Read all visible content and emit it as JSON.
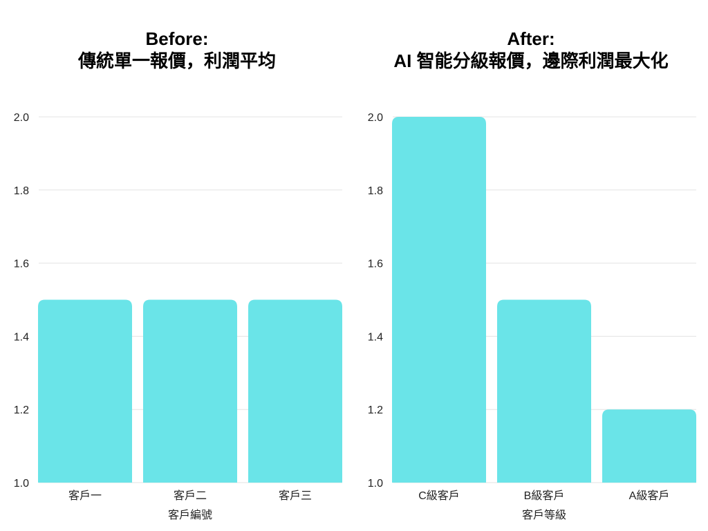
{
  "bar_color": "#6ae4e8",
  "grid_color": "#e3e3e3",
  "chart_data": [
    {
      "type": "bar",
      "title_line1": "Before:",
      "title_line2": "傳統單一報價，利潤平均",
      "categories": [
        "客戶一",
        "客戶二",
        "客戶三"
      ],
      "values": [
        1.5,
        1.5,
        1.5
      ],
      "xlabel": "客戶編號",
      "ylabel": "",
      "ylim": [
        1.0,
        2.0
      ],
      "yticks": [
        "1.0",
        "1.2",
        "1.4",
        "1.6",
        "1.8",
        "2.0"
      ],
      "grid": true
    },
    {
      "type": "bar",
      "title_line1": "After:",
      "title_line2": "AI 智能分級報價，邊際利潤最大化",
      "categories": [
        "C級客戶",
        "B級客戶",
        "A級客戶"
      ],
      "values": [
        2.0,
        1.5,
        1.2
      ],
      "xlabel": "客戶等級",
      "ylabel": "",
      "ylim": [
        1.0,
        2.0
      ],
      "yticks": [
        "1.0",
        "1.2",
        "1.4",
        "1.6",
        "1.8",
        "2.0"
      ],
      "grid": true
    }
  ]
}
